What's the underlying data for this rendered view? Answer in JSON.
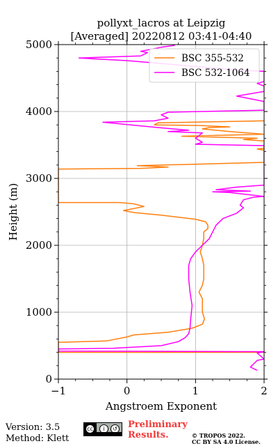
{
  "chart_data": {
    "type": "line",
    "title": "pollyxt_lacros at Leipzig",
    "subtitle": "[Averaged] 20220812 03:41-04:40",
    "xlabel": "Angstroem Exponent",
    "ylabel": "Height (m)",
    "xlim": [
      -1,
      2
    ],
    "ylim": [
      0,
      5000
    ],
    "xticks": [
      "−1",
      "0",
      "1",
      "2"
    ],
    "xtick_values": [
      -1,
      0,
      1,
      2
    ],
    "yticks": [
      "0",
      "1000",
      "2000",
      "3000",
      "4000",
      "5000"
    ],
    "ytick_values": [
      0,
      1000,
      2000,
      3000,
      4000,
      5000
    ],
    "grid": true,
    "legend_position": "top-right",
    "series": [
      {
        "name": "BSC 355-532",
        "color": "#ff7f0e",
        "points": [
          [
            2.0,
            400
          ],
          [
            0.25,
            400
          ],
          [
            -1.0,
            400
          ],
          [
            -1.0,
            550
          ],
          [
            -0.3,
            570
          ],
          [
            0.0,
            630
          ],
          [
            0.1,
            660
          ],
          [
            0.6,
            700
          ],
          [
            0.95,
            760
          ],
          [
            1.1,
            820
          ],
          [
            1.13,
            900
          ],
          [
            1.1,
            1000
          ],
          [
            1.1,
            1100
          ],
          [
            1.1,
            1200
          ],
          [
            1.05,
            1300
          ],
          [
            1.1,
            1400
          ],
          [
            1.12,
            1500
          ],
          [
            1.12,
            1700
          ],
          [
            1.1,
            1800
          ],
          [
            1.07,
            1900
          ],
          [
            1.1,
            2000
          ],
          [
            1.12,
            2100
          ],
          [
            1.12,
            2200
          ],
          [
            1.18,
            2250
          ],
          [
            1.18,
            2300
          ],
          [
            1.15,
            2350
          ],
          [
            1.0,
            2390
          ],
          [
            0.5,
            2450
          ],
          [
            0.1,
            2490
          ],
          [
            -0.05,
            2520
          ],
          [
            0.25,
            2580
          ],
          [
            0.1,
            2620
          ],
          [
            -0.1,
            2640
          ],
          [
            -1.0,
            2640
          ],
          [
            -1.0,
            3140
          ],
          [
            0.2,
            3150
          ],
          [
            0.6,
            3170
          ],
          [
            0.3,
            3185
          ],
          [
            0.15,
            3190
          ],
          [
            2.0,
            3240
          ],
          [
            2.0,
            3420
          ],
          [
            1.9,
            3440
          ],
          [
            2.0,
            3450
          ],
          [
            2.0,
            3560
          ],
          [
            1.7,
            3580
          ],
          [
            1.9,
            3600
          ],
          [
            0.8,
            3630
          ],
          [
            2.0,
            3660
          ],
          [
            1.5,
            3700
          ],
          [
            1.1,
            3740
          ],
          [
            1.2,
            3760
          ],
          [
            1.5,
            3770
          ],
          [
            1.1,
            3790
          ],
          [
            0.4,
            3800
          ],
          [
            0.45,
            3830
          ],
          [
            2.0,
            3860
          ]
        ]
      },
      {
        "name": "BSC 532-1064",
        "color": "#ff00ff",
        "points": [
          [
            1.9,
            130
          ],
          [
            1.8,
            180
          ],
          [
            1.85,
            230
          ],
          [
            1.9,
            280
          ],
          [
            2.0,
            300
          ],
          [
            1.9,
            390
          ],
          [
            2.0,
            410
          ],
          [
            -1.0,
            420
          ],
          [
            -1.0,
            450
          ],
          [
            -0.2,
            460
          ],
          [
            0.5,
            500
          ],
          [
            0.75,
            560
          ],
          [
            0.85,
            620
          ],
          [
            0.9,
            680
          ],
          [
            0.92,
            760
          ],
          [
            0.93,
            900
          ],
          [
            0.95,
            1100
          ],
          [
            0.92,
            1300
          ],
          [
            0.9,
            1500
          ],
          [
            0.9,
            1700
          ],
          [
            0.93,
            1800
          ],
          [
            1.0,
            1900
          ],
          [
            1.1,
            2000
          ],
          [
            1.2,
            2100
          ],
          [
            1.25,
            2200
          ],
          [
            1.3,
            2300
          ],
          [
            1.4,
            2400
          ],
          [
            1.6,
            2480
          ],
          [
            1.7,
            2560
          ],
          [
            1.65,
            2600
          ],
          [
            1.7,
            2680
          ],
          [
            1.85,
            2720
          ],
          [
            2.0,
            2730
          ],
          [
            1.5,
            2790
          ],
          [
            1.25,
            2800
          ],
          [
            1.8,
            2810
          ],
          [
            1.3,
            2830
          ],
          [
            1.6,
            2870
          ],
          [
            2.0,
            2900
          ],
          [
            2.0,
            3490
          ],
          [
            1.0,
            3510
          ],
          [
            1.1,
            3540
          ],
          [
            1.0,
            3600
          ],
          [
            1.1,
            3680
          ],
          [
            0.6,
            3700
          ],
          [
            0.9,
            3720
          ],
          [
            0.45,
            3760
          ],
          [
            -0.35,
            3840
          ],
          [
            0.4,
            3860
          ],
          [
            0.6,
            3900
          ],
          [
            0.5,
            3950
          ],
          [
            0.6,
            3990
          ],
          [
            2.0,
            4020
          ],
          [
            2.0,
            4150
          ],
          [
            1.6,
            4230
          ],
          [
            2.0,
            4300
          ],
          [
            2.0,
            4380
          ],
          [
            1.9,
            4420
          ],
          [
            2.0,
            4450
          ],
          [
            2.0,
            4600
          ],
          [
            1.6,
            4620
          ],
          [
            0.7,
            4700
          ],
          [
            0.0,
            4760
          ],
          [
            -0.7,
            4800
          ],
          [
            0.2,
            4830
          ],
          [
            0.3,
            4880
          ],
          [
            0.2,
            4900
          ],
          [
            0.5,
            4960
          ],
          [
            0.7,
            4990
          ]
        ]
      }
    ]
  },
  "footer": {
    "version": "Version: 3.5",
    "method": "Method: Klett",
    "preliminary_line1": "Preliminary",
    "preliminary_line2": "Results.",
    "license_line1": "© TROPOS 2022.",
    "license_line2": "CC BY SA 4.0 License."
  },
  "cc_badge": {
    "symbols": [
      "cc",
      "by",
      "sa"
    ]
  }
}
